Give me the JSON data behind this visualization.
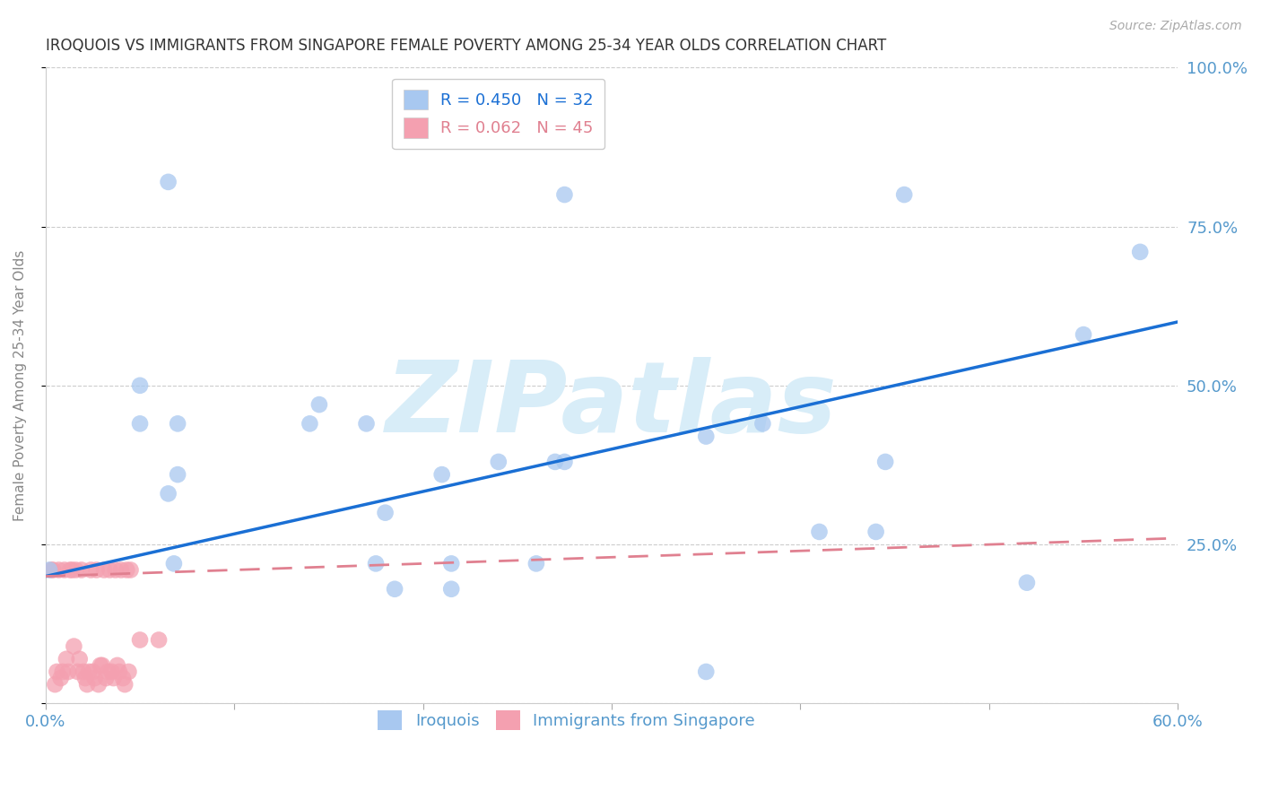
{
  "title": "IROQUOIS VS IMMIGRANTS FROM SINGAPORE FEMALE POVERTY AMONG 25-34 YEAR OLDS CORRELATION CHART",
  "source": "Source: ZipAtlas.com",
  "ylabel_label": "Female Poverty Among 25-34 Year Olds",
  "xlim": [
    0.0,
    0.6
  ],
  "ylim": [
    0.0,
    1.0
  ],
  "iroquois_R": 0.45,
  "iroquois_N": 32,
  "singapore_R": 0.062,
  "singapore_N": 45,
  "iroquois_color": "#a8c8f0",
  "singapore_color": "#f4a0b0",
  "iroquois_line_color": "#1a6fd4",
  "singapore_line_color": "#e08090",
  "watermark": "ZIPatlas",
  "watermark_color": "#d8edf8",
  "iroquois_x": [
    0.002,
    0.05,
    0.05,
    0.07,
    0.07,
    0.065,
    0.068,
    0.065,
    0.14,
    0.145,
    0.17,
    0.175,
    0.18,
    0.185,
    0.21,
    0.215,
    0.215,
    0.27,
    0.275,
    0.275,
    0.35,
    0.35,
    0.38,
    0.41,
    0.44,
    0.445,
    0.455,
    0.52,
    0.55,
    0.58,
    0.24,
    0.26
  ],
  "iroquois_y": [
    0.21,
    0.5,
    0.44,
    0.44,
    0.36,
    0.33,
    0.22,
    0.82,
    0.44,
    0.47,
    0.44,
    0.22,
    0.3,
    0.18,
    0.36,
    0.22,
    0.18,
    0.38,
    0.38,
    0.8,
    0.42,
    0.05,
    0.44,
    0.27,
    0.27,
    0.38,
    0.8,
    0.19,
    0.58,
    0.71,
    0.38,
    0.22
  ],
  "singapore_x": [
    0.003,
    0.004,
    0.005,
    0.006,
    0.007,
    0.008,
    0.009,
    0.01,
    0.011,
    0.012,
    0.013,
    0.014,
    0.015,
    0.016,
    0.017,
    0.018,
    0.019,
    0.02,
    0.021,
    0.022,
    0.023,
    0.024,
    0.025,
    0.026,
    0.027,
    0.028,
    0.029,
    0.03,
    0.031,
    0.032,
    0.033,
    0.034,
    0.035,
    0.036,
    0.037,
    0.038,
    0.039,
    0.04,
    0.041,
    0.042,
    0.043,
    0.044,
    0.045,
    0.05,
    0.06
  ],
  "singapore_y": [
    0.21,
    0.21,
    0.03,
    0.05,
    0.21,
    0.04,
    0.05,
    0.21,
    0.07,
    0.05,
    0.21,
    0.21,
    0.09,
    0.21,
    0.05,
    0.07,
    0.21,
    0.05,
    0.04,
    0.03,
    0.05,
    0.21,
    0.05,
    0.04,
    0.21,
    0.03,
    0.06,
    0.06,
    0.21,
    0.04,
    0.05,
    0.21,
    0.05,
    0.04,
    0.21,
    0.06,
    0.05,
    0.21,
    0.04,
    0.03,
    0.21,
    0.05,
    0.21,
    0.1,
    0.1
  ],
  "background_color": "#ffffff",
  "grid_color": "#cccccc",
  "title_color": "#333333",
  "axis_label_color": "#888888",
  "tick_color": "#5599cc",
  "iroquois_line_x0": 0.0,
  "iroquois_line_y0": 0.2,
  "iroquois_line_x1": 0.6,
  "iroquois_line_y1": 0.6,
  "singapore_line_x0": 0.0,
  "singapore_line_y0": 0.2,
  "singapore_line_x1": 0.6,
  "singapore_line_y1": 0.26
}
